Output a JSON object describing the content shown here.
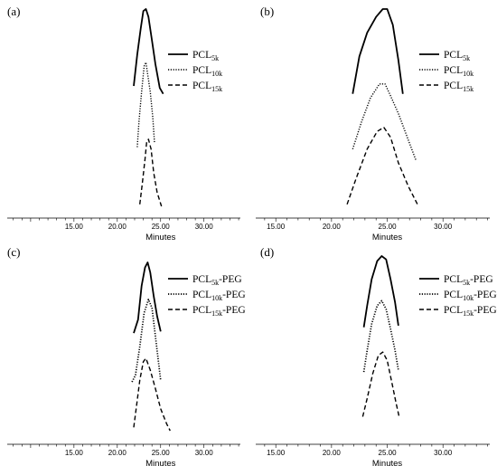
{
  "chart_data": [
    {
      "type": "line",
      "panel_label": "(a)",
      "xlabel": "Minutes",
      "ylabel": "",
      "xlim": [
        7.3,
        34.2
      ],
      "ylim": [
        0,
        1
      ],
      "x_ticks": [
        "15.00",
        "20.00",
        "25.00",
        "30.00"
      ],
      "x_tick_values": [
        15,
        20,
        25,
        30
      ],
      "series": [
        {
          "name": "PCL",
          "sub": "5k",
          "suffix": "",
          "style": "solid",
          "width": 1.8,
          "x": [
            21.9,
            22.3,
            22.7,
            23.0,
            23.3,
            23.6,
            24.0,
            24.4,
            24.9,
            25.3
          ],
          "y": [
            0.61,
            0.77,
            0.9,
            0.99,
            1.0,
            0.96,
            0.84,
            0.72,
            0.6,
            0.57
          ]
        },
        {
          "name": "PCL",
          "sub": "10k",
          "suffix": "",
          "style": "dotted",
          "width": 1.4,
          "x": [
            22.3,
            22.5,
            22.8,
            23.1,
            23.3,
            23.5,
            23.8,
            24.1,
            24.3
          ],
          "y": [
            0.3,
            0.43,
            0.58,
            0.71,
            0.73,
            0.67,
            0.58,
            0.45,
            0.32
          ]
        },
        {
          "name": "PCL",
          "sub": "15k",
          "suffix": "",
          "style": "dashed",
          "width": 1.4,
          "x": [
            22.6,
            22.9,
            23.2,
            23.4,
            23.6,
            23.9,
            24.2,
            24.6,
            25.1
          ],
          "y": [
            0.01,
            0.12,
            0.24,
            0.33,
            0.34,
            0.29,
            0.17,
            0.07,
            0.0
          ]
        }
      ]
    },
    {
      "type": "line",
      "panel_label": "(b)",
      "xlabel": "Minutes",
      "ylabel": "",
      "xlim": [
        13.2,
        34.2
      ],
      "ylim": [
        0,
        1
      ],
      "x_ticks": [
        "15.00",
        "20.00",
        "25.00",
        "30.00"
      ],
      "x_tick_values": [
        15,
        20,
        25,
        30
      ],
      "series": [
        {
          "name": "PCL",
          "sub": "5k",
          "suffix": "",
          "style": "solid",
          "width": 1.8,
          "x": [
            21.9,
            22.5,
            23.2,
            24.0,
            24.6,
            25.0,
            25.5,
            26.0,
            26.4
          ],
          "y": [
            0.57,
            0.76,
            0.88,
            0.96,
            1.0,
            1.0,
            0.92,
            0.74,
            0.57
          ]
        },
        {
          "name": "PCL",
          "sub": "10k",
          "suffix": "",
          "style": "dotted",
          "width": 1.4,
          "x": [
            21.9,
            22.7,
            23.5,
            24.3,
            24.8,
            25.3,
            26.0,
            26.8,
            27.6
          ],
          "y": [
            0.29,
            0.43,
            0.55,
            0.62,
            0.62,
            0.56,
            0.47,
            0.35,
            0.23
          ]
        },
        {
          "name": "PCL",
          "sub": "15k",
          "suffix": "",
          "style": "dashed",
          "width": 1.4,
          "x": [
            21.4,
            22.2,
            23.2,
            24.1,
            24.7,
            25.3,
            26.0,
            26.9,
            27.8
          ],
          "y": [
            0.01,
            0.14,
            0.29,
            0.38,
            0.4,
            0.35,
            0.22,
            0.1,
            0.0
          ]
        }
      ]
    },
    {
      "type": "line",
      "panel_label": "(c)",
      "xlabel": "Minutes",
      "ylabel": "",
      "xlim": [
        7.3,
        34.2
      ],
      "ylim": [
        0,
        1
      ],
      "x_ticks": [
        "15.00",
        "20.00",
        "25.00",
        "30.00"
      ],
      "x_tick_values": [
        15,
        20,
        25,
        30
      ],
      "series": [
        {
          "name": "PCL",
          "sub": "5k",
          "suffix": "-PEG",
          "style": "solid",
          "width": 1.8,
          "x": [
            21.9,
            22.4,
            22.8,
            23.2,
            23.5,
            23.8,
            24.2,
            24.6,
            25.0
          ],
          "y": [
            0.58,
            0.66,
            0.86,
            0.97,
            1.0,
            0.94,
            0.8,
            0.68,
            0.59
          ]
        },
        {
          "name": "PCL",
          "sub": "10k",
          "suffix": "-PEG",
          "style": "dotted",
          "width": 1.7,
          "x": [
            21.7,
            22.1,
            22.6,
            23.1,
            23.6,
            24.0,
            24.4,
            24.7,
            25.0
          ],
          "y": [
            0.29,
            0.33,
            0.5,
            0.7,
            0.78,
            0.73,
            0.56,
            0.43,
            0.3
          ]
        },
        {
          "name": "PCL",
          "sub": "15k",
          "suffix": "-PEG",
          "style": "dashed",
          "width": 1.4,
          "x": [
            21.9,
            22.2,
            22.6,
            23.0,
            23.3,
            23.8,
            24.4,
            25.0,
            25.7,
            26.1
          ],
          "y": [
            0.02,
            0.14,
            0.3,
            0.41,
            0.43,
            0.36,
            0.25,
            0.13,
            0.04,
            0.0
          ]
        }
      ]
    },
    {
      "type": "line",
      "panel_label": "(d)",
      "xlabel": "Minutes",
      "ylabel": "",
      "xlim": [
        13.2,
        34.2
      ],
      "ylim": [
        0,
        1
      ],
      "x_ticks": [
        "15.00",
        "20.00",
        "25.00",
        "30.00"
      ],
      "x_tick_values": [
        15,
        20,
        25,
        30
      ],
      "series": [
        {
          "name": "PCL",
          "sub": "5k",
          "suffix": "-PEG",
          "style": "solid",
          "width": 1.8,
          "x": [
            22.9,
            23.2,
            23.6,
            24.1,
            24.5,
            24.9,
            25.3,
            25.7,
            26.0
          ],
          "y": [
            0.57,
            0.7,
            0.86,
            0.97,
            1.0,
            0.98,
            0.86,
            0.72,
            0.58
          ]
        },
        {
          "name": "PCL",
          "sub": "10k",
          "suffix": "-PEG",
          "style": "dotted",
          "width": 1.7,
          "x": [
            22.9,
            23.2,
            23.6,
            24.1,
            24.5,
            24.9,
            25.3,
            25.7,
            26.0
          ],
          "y": [
            0.3,
            0.43,
            0.59,
            0.7,
            0.73,
            0.68,
            0.56,
            0.43,
            0.31
          ]
        },
        {
          "name": "PCL",
          "sub": "15k",
          "suffix": "-PEG",
          "style": "dashed",
          "width": 1.4,
          "x": [
            22.8,
            23.2,
            23.7,
            24.2,
            24.6,
            25.0,
            25.4,
            25.8,
            26.1
          ],
          "y": [
            0.03,
            0.14,
            0.29,
            0.4,
            0.42,
            0.37,
            0.24,
            0.11,
            0.02
          ]
        }
      ]
    }
  ]
}
